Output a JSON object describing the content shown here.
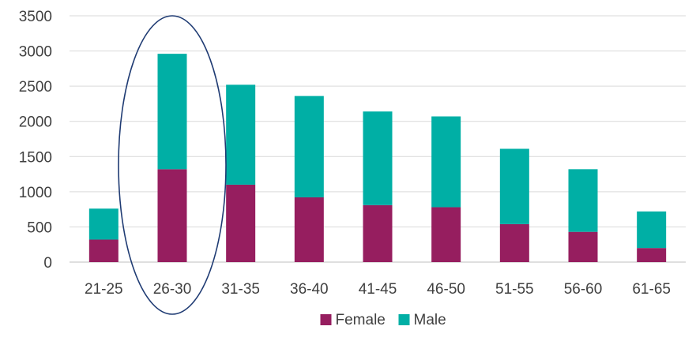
{
  "chart_data": {
    "type": "bar",
    "stacked": true,
    "title": "",
    "xlabel": "",
    "ylabel": "",
    "categories": [
      "21-25",
      "26-30",
      "31-35",
      "36-40",
      "41-45",
      "46-50",
      "51-55",
      "56-60",
      "61-65"
    ],
    "series": [
      {
        "name": "Female",
        "color": "#961E5F",
        "values": [
          320,
          1320,
          1100,
          920,
          810,
          780,
          540,
          430,
          200
        ]
      },
      {
        "name": "Male",
        "color": "#00AFA5",
        "values": [
          440,
          1640,
          1420,
          1440,
          1330,
          1290,
          1070,
          890,
          520
        ]
      }
    ],
    "ylim": [
      0,
      3500
    ],
    "yticks": [
      0,
      500,
      1000,
      1500,
      2000,
      2500,
      3000,
      3500
    ],
    "grid": true,
    "legend": "bottom-center",
    "highlight": {
      "category": "26-30",
      "shape": "ellipse",
      "color": "#1F3B73"
    }
  }
}
